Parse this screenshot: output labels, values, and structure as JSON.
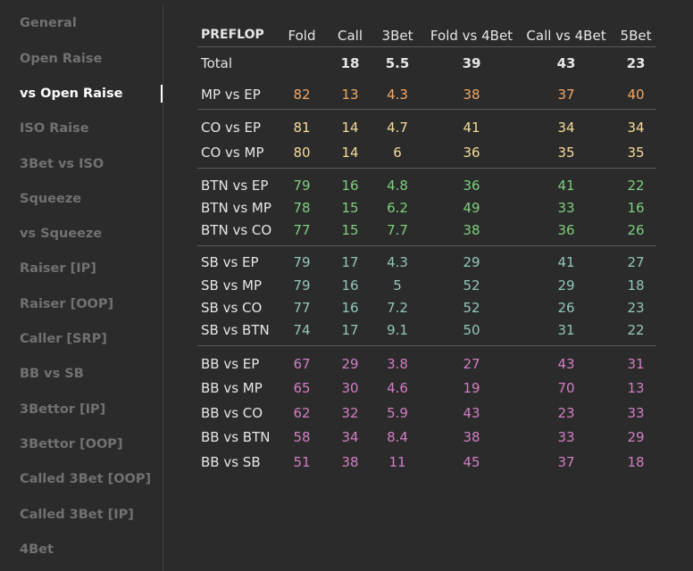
{
  "sidebar": {
    "items": [
      {
        "label": "General",
        "active": false
      },
      {
        "label": "Open Raise",
        "active": false
      },
      {
        "label": "vs Open Raise",
        "active": true
      },
      {
        "label": "ISO Raise",
        "active": false
      },
      {
        "label": "3Bet vs ISO",
        "active": false
      },
      {
        "label": "Squeeze",
        "active": false
      },
      {
        "label": "vs Squeeze",
        "active": false
      },
      {
        "label": "Raiser [IP]",
        "active": false
      },
      {
        "label": "Raiser [OOP]",
        "active": false
      },
      {
        "label": "Caller [SRP]",
        "active": false
      },
      {
        "label": "BB vs SB",
        "active": false
      },
      {
        "label": "3Bettor [IP]",
        "active": false
      },
      {
        "label": "3Bettor [OOP]",
        "active": false
      },
      {
        "label": "Called 3Bet [OOP]",
        "active": false
      },
      {
        "label": "Called 3Bet [IP]",
        "active": false
      },
      {
        "label": "4Bet",
        "active": false
      }
    ]
  },
  "table": {
    "headers": [
      "PREFLOP",
      "Fold",
      "Call",
      "3Bet",
      "Fold vs 4Bet",
      "Call vs 4Bet",
      "5Bet"
    ],
    "groups": [
      {
        "color": "#e6e6e6",
        "bold": true,
        "rows": [
          [
            "Total",
            "",
            "18",
            "5.5",
            "39",
            "43",
            "23"
          ]
        ]
      },
      {
        "color": "#f0a868",
        "bold": false,
        "rows": [
          [
            "MP vs EP",
            "82",
            "13",
            "4.3",
            "38",
            "37",
            "40"
          ]
        ]
      },
      {
        "color": "#f5dc9a",
        "bold": false,
        "rows": [
          [
            "CO vs EP",
            "81",
            "14",
            "4.7",
            "41",
            "34",
            "34"
          ],
          [
            "CO vs MP",
            "80",
            "14",
            "6",
            "36",
            "35",
            "35"
          ]
        ]
      },
      {
        "color": "#7fcf7f",
        "bold": false,
        "rows": [
          [
            "BTN vs EP",
            "79",
            "16",
            "4.8",
            "36",
            "41",
            "22"
          ],
          [
            "BTN vs MP",
            "78",
            "15",
            "6.2",
            "49",
            "33",
            "16"
          ],
          [
            "BTN vs CO",
            "77",
            "15",
            "7.7",
            "38",
            "36",
            "26"
          ]
        ]
      },
      {
        "color": "#93c7bb",
        "bold": false,
        "rows": [
          [
            "SB vs EP",
            "79",
            "17",
            "4.3",
            "29",
            "41",
            "27"
          ],
          [
            "SB vs MP",
            "79",
            "16",
            "5",
            "52",
            "29",
            "18"
          ],
          [
            "SB vs CO",
            "77",
            "16",
            "7.2",
            "52",
            "26",
            "23"
          ],
          [
            "SB vs BTN",
            "74",
            "17",
            "9.1",
            "50",
            "31",
            "22"
          ]
        ]
      },
      {
        "color": "#d17fc3",
        "bold": false,
        "rows": [
          [
            "BB vs EP",
            "67",
            "29",
            "3.8",
            "27",
            "43",
            "31"
          ],
          [
            "BB vs MP",
            "65",
            "30",
            "4.6",
            "19",
            "70",
            "13"
          ],
          [
            "BB vs CO",
            "62",
            "32",
            "5.9",
            "43",
            "23",
            "33"
          ],
          [
            "BB vs BTN",
            "58",
            "34",
            "8.4",
            "38",
            "33",
            "29"
          ],
          [
            "BB vs SB",
            "51",
            "38",
            "11",
            "45",
            "37",
            "18"
          ]
        ]
      }
    ]
  }
}
